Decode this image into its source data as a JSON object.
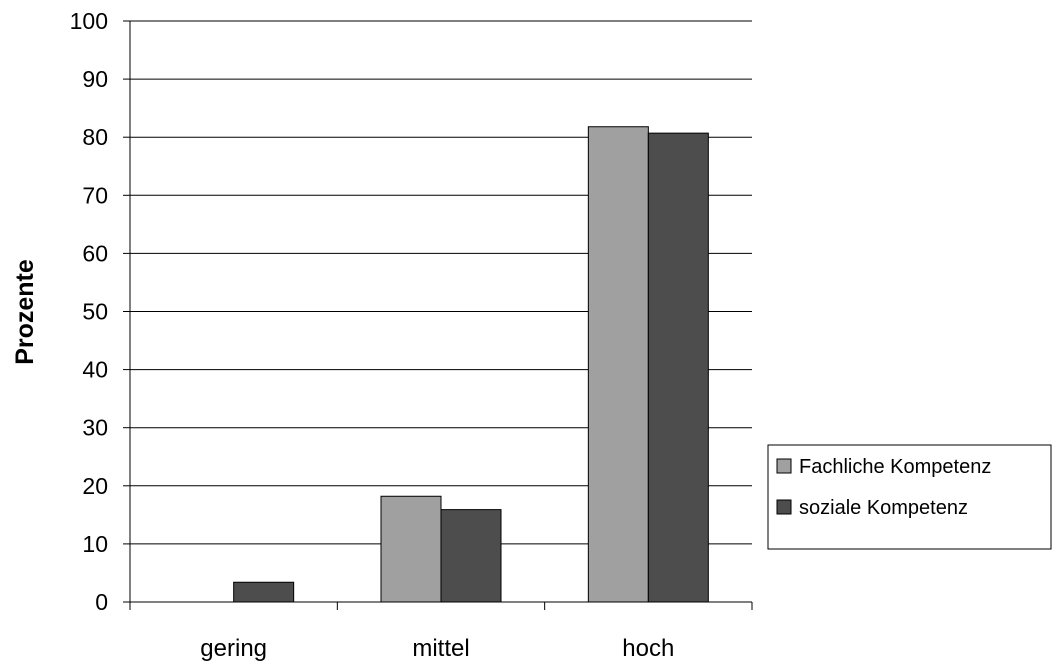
{
  "chart_data": {
    "type": "bar",
    "categories": [
      "gering",
      "mittel",
      "hoch"
    ],
    "series": [
      {
        "name": "Fachliche Kompetenz",
        "values": [
          0,
          18.2,
          81.8
        ],
        "color": "#a0a0a0"
      },
      {
        "name": "soziale Kompetenz",
        "values": [
          3.4,
          15.9,
          80.7
        ],
        "color": "#4d4d4d"
      }
    ],
    "title": "",
    "xlabel": "",
    "ylabel": "Prozente",
    "ylim": [
      0,
      100
    ],
    "yticks": [
      0,
      10,
      20,
      30,
      40,
      50,
      60,
      70,
      80,
      90,
      100
    ],
    "grid": true,
    "legend": "right"
  }
}
